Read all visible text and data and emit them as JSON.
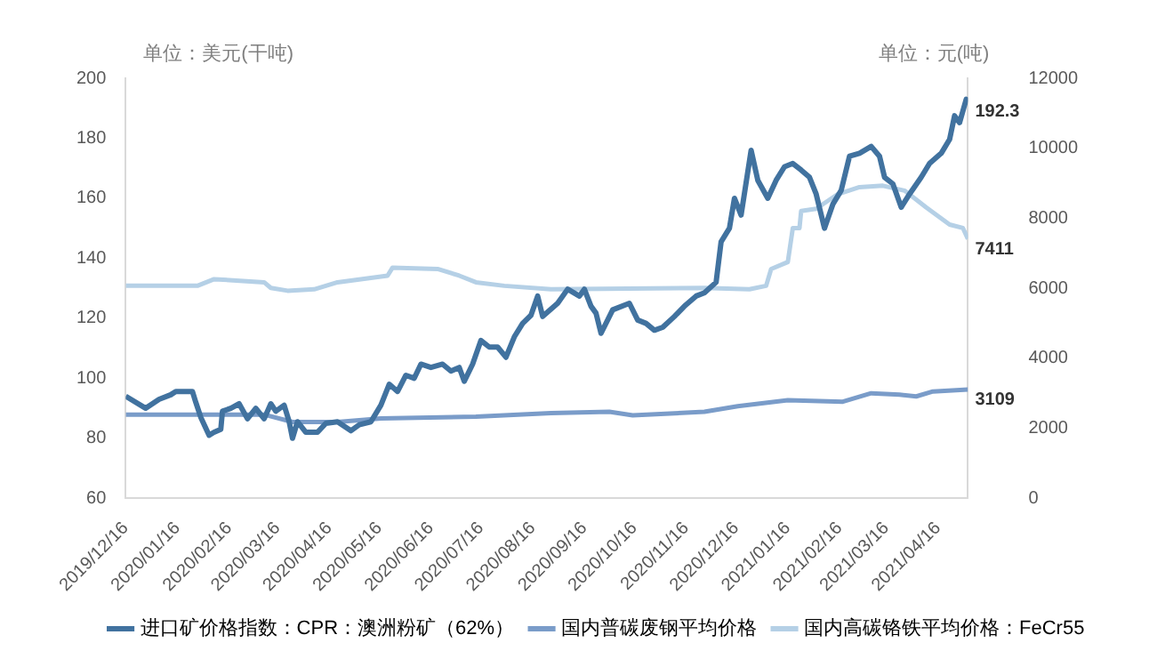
{
  "chart_data": {
    "type": "line",
    "ylabel": "单位：美元(干吨)",
    "y2label": "单位：元(吨)",
    "xlim": [
      "2019-12-16",
      "2021-05-04"
    ],
    "xticks": [
      {
        "value": "2019-12-16",
        "label": "2019/12/16"
      },
      {
        "value": "2020-01-16",
        "label": "2020/01/16"
      },
      {
        "value": "2020-02-16",
        "label": "2020/02/16"
      },
      {
        "value": "2020-03-16",
        "label": "2020/03/16"
      },
      {
        "value": "2020-04-16",
        "label": "2020/04/16"
      },
      {
        "value": "2020-05-16",
        "label": "2020/05/16"
      },
      {
        "value": "2020-06-16",
        "label": "2020/06/16"
      },
      {
        "value": "2020-07-16",
        "label": "2020/07/16"
      },
      {
        "value": "2020-08-16",
        "label": "2020/08/16"
      },
      {
        "value": "2020-09-16",
        "label": "2020/09/16"
      },
      {
        "value": "2020-10-16",
        "label": "2020/10/16"
      },
      {
        "value": "2020-11-16",
        "label": "2020/11/16"
      },
      {
        "value": "2020-12-16",
        "label": "2020/12/16"
      },
      {
        "value": "2021-01-16",
        "label": "2021/01/16"
      },
      {
        "value": "2021-02-16",
        "label": "2021/02/16"
      },
      {
        "value": "2021-03-16",
        "label": "2021/03/16"
      },
      {
        "value": "2021-04-16",
        "label": "2021/04/16"
      }
    ],
    "ylim": [
      60,
      200
    ],
    "yticks": [
      60,
      80,
      100,
      120,
      140,
      160,
      180,
      200
    ],
    "y2lim": [
      0,
      12000
    ],
    "y2ticks": [
      0,
      2000,
      4000,
      6000,
      8000,
      10000,
      12000
    ],
    "grid": false,
    "legend": "bottom",
    "marker": "none",
    "line_style": "solid",
    "series": [
      {
        "name": "进口矿价格指数：CPR：澳洲粉矿（62%）",
        "color": "#41729f",
        "axis": "y",
        "x": [
          "2019-12-16",
          "2019-12-28",
          "2020-01-05",
          "2020-01-12",
          "2020-01-15",
          "2020-01-25",
          "2020-01-27",
          "2020-01-30",
          "2020-02-04",
          "2020-02-07",
          "2020-02-11",
          "2020-02-12",
          "2020-02-17",
          "2020-02-22",
          "2020-02-27",
          "2020-03-03",
          "2020-03-08",
          "2020-03-12",
          "2020-03-15",
          "2020-03-20",
          "2020-03-23",
          "2020-03-25",
          "2020-03-28",
          "2020-04-02",
          "2020-04-09",
          "2020-04-14",
          "2020-04-21",
          "2020-04-29",
          "2020-05-04",
          "2020-05-11",
          "2020-05-17",
          "2020-05-22",
          "2020-05-27",
          "2020-06-01",
          "2020-06-06",
          "2020-06-10",
          "2020-06-16",
          "2020-06-23",
          "2020-06-28",
          "2020-07-03",
          "2020-07-06",
          "2020-07-11",
          "2020-07-16",
          "2020-07-21",
          "2020-07-26",
          "2020-07-31",
          "2020-08-05",
          "2020-08-10",
          "2020-08-15",
          "2020-08-19",
          "2020-08-22",
          "2020-08-31",
          "2020-09-06",
          "2020-09-13",
          "2020-09-16",
          "2020-09-20",
          "2020-09-23",
          "2020-09-26",
          "2020-10-03",
          "2020-10-13",
          "2020-10-18",
          "2020-10-23",
          "2020-10-28",
          "2020-11-02",
          "2020-11-09",
          "2020-11-15",
          "2020-11-22",
          "2020-11-27",
          "2020-12-04",
          "2020-12-07",
          "2020-12-12",
          "2020-12-15",
          "2020-12-19",
          "2020-12-25",
          "2020-12-29",
          "2021-01-04",
          "2021-01-09",
          "2021-01-14",
          "2021-01-19",
          "2021-01-24",
          "2021-01-29",
          "2021-02-02",
          "2021-02-07",
          "2021-02-12",
          "2021-02-17",
          "2021-02-22",
          "2021-02-28",
          "2021-03-07",
          "2021-03-12",
          "2021-03-15",
          "2021-03-20",
          "2021-03-25",
          "2021-03-30",
          "2021-04-06",
          "2021-04-11",
          "2021-04-18",
          "2021-04-23",
          "2021-04-26",
          "2021-04-29",
          "2021-05-03",
          "2021-05-04"
        ],
        "values": [
          94,
          90,
          93,
          94.5,
          95.6,
          95.6,
          92,
          87,
          81,
          82,
          83,
          89,
          90,
          91.5,
          86.5,
          90,
          86.5,
          91.5,
          89,
          91,
          85.5,
          80,
          85.5,
          82,
          82,
          85,
          85.5,
          82.5,
          84.5,
          85.5,
          91,
          98,
          95.6,
          101,
          100,
          104.7,
          103.6,
          104.7,
          102.4,
          103.6,
          99,
          104.7,
          112.6,
          110.4,
          110.4,
          107,
          113.8,
          118.3,
          121,
          127.4,
          120.6,
          125,
          129.7,
          127.4,
          129.7,
          124,
          121.7,
          115,
          122.8,
          125,
          119.4,
          118.3,
          116,
          117,
          120.6,
          124,
          127.4,
          128.5,
          132,
          145.5,
          150,
          160,
          154.4,
          176,
          166,
          160,
          166,
          170.5,
          171.6,
          169.4,
          167,
          161.4,
          150,
          158,
          162.6,
          174,
          175,
          177.3,
          174,
          167,
          164.8,
          157,
          161.4,
          167,
          171.6,
          175,
          179.6,
          187.5,
          185.2,
          193,
          192.3
        ],
        "value_labels": [
          null,
          null,
          null,
          null,
          null,
          null,
          null,
          null,
          null,
          null,
          null,
          null,
          null,
          null,
          null,
          null,
          null,
          null,
          null,
          null,
          null,
          null,
          null,
          null,
          null,
          null,
          null,
          null,
          null,
          null,
          null,
          null,
          null,
          null,
          null,
          null,
          null,
          null,
          null,
          null,
          null,
          null,
          null,
          null,
          null,
          null,
          null,
          null,
          null,
          null,
          null,
          null,
          null,
          null,
          null,
          null,
          null,
          null,
          null,
          null,
          null,
          null,
          null,
          null,
          null,
          null,
          null,
          null,
          null,
          null,
          null,
          null,
          null,
          null,
          null,
          null,
          null,
          null,
          null,
          null,
          null,
          null,
          null,
          null,
          null,
          null,
          null,
          null,
          null,
          null,
          null,
          null,
          null,
          null,
          null,
          null,
          null,
          null,
          null,
          null,
          "192.3"
        ]
      },
      {
        "name": "国内普碳废钢平均价格",
        "color": "#7a9cc9",
        "axis": "y2",
        "x": [
          "2019-12-16",
          "2020-03-08",
          "2020-03-25",
          "2020-04-21",
          "2020-05-17",
          "2020-07-13",
          "2020-08-27",
          "2020-10-01",
          "2020-10-15",
          "2020-11-27",
          "2020-12-17",
          "2021-01-16",
          "2021-02-18",
          "2021-03-07",
          "2021-03-24",
          "2021-04-03",
          "2021-04-13",
          "2021-05-04"
        ],
        "values": [
          2390,
          2390,
          2180,
          2180,
          2280,
          2330,
          2430,
          2470,
          2370,
          2470,
          2630,
          2800,
          2760,
          3000,
          2960,
          2910,
          3050,
          3109
        ],
        "value_labels": [
          null,
          null,
          null,
          null,
          null,
          null,
          null,
          null,
          null,
          null,
          null,
          null,
          null,
          null,
          null,
          null,
          null,
          "3109"
        ]
      },
      {
        "name": "国内高碳铬铁平均价格：FeCr55",
        "color": "#b5d0e6",
        "axis": "y2",
        "x": [
          "2019-12-16",
          "2020-01-28",
          "2020-02-07",
          "2020-03-08",
          "2020-03-12",
          "2020-03-22",
          "2020-04-07",
          "2020-04-21",
          "2020-05-21",
          "2020-05-24",
          "2020-06-20",
          "2020-07-03",
          "2020-07-13",
          "2020-07-30",
          "2020-08-27",
          "2020-11-27",
          "2020-12-24",
          "2021-01-03",
          "2021-01-06",
          "2021-01-16",
          "2021-01-19",
          "2021-01-23",
          "2021-01-24",
          "2021-02-02",
          "2021-02-15",
          "2021-02-28",
          "2021-03-14",
          "2021-03-27",
          "2021-04-09",
          "2021-04-23",
          "2021-05-01",
          "2021-05-04"
        ],
        "values": [
          6070,
          6070,
          6260,
          6170,
          6010,
          5930,
          5970,
          6170,
          6360,
          6590,
          6550,
          6360,
          6170,
          6070,
          5970,
          6010,
          5970,
          6070,
          6550,
          6750,
          7720,
          7720,
          8210,
          8270,
          8690,
          8890,
          8930,
          8790,
          8310,
          7820,
          7720,
          7411
        ],
        "value_labels": [
          null,
          null,
          null,
          null,
          null,
          null,
          null,
          null,
          null,
          null,
          null,
          null,
          null,
          null,
          null,
          null,
          null,
          null,
          null,
          null,
          null,
          null,
          null,
          null,
          null,
          null,
          null,
          null,
          null,
          null,
          null,
          "7411"
        ]
      }
    ]
  }
}
